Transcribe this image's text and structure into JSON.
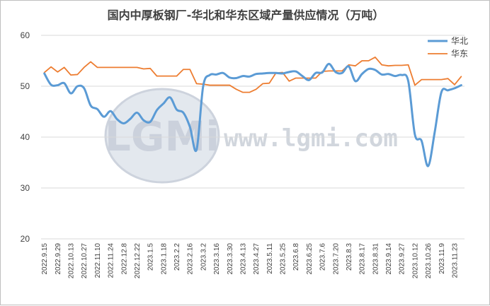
{
  "chart_data": {
    "type": "line",
    "title": "国内中厚板钢厂-华北和华东区域产量供应情况（万吨）",
    "xlabel": "",
    "ylabel": "",
    "ylim": [
      20,
      60
    ],
    "yticks": [
      20,
      30,
      40,
      50,
      60
    ],
    "grid": true,
    "legend_position": "top-right",
    "watermark": {
      "logo_text": "LGMi",
      "url_text": "www.lgmi.com"
    },
    "x": [
      "2022.9.15",
      "2022.9.22",
      "2022.9.29",
      "2022.10.6",
      "2022.10.13",
      "2022.10.20",
      "2022.10.27",
      "2022.11.3",
      "2022.11.10",
      "2022.11.17",
      "2022.11.24",
      "2022.12.1",
      "2022.12.8",
      "2022.12.15",
      "2022.12.22",
      "2022.12.29",
      "2023.1.5",
      "2023.1.12",
      "2023.1.18",
      "2023.1.25",
      "2023.2.2",
      "2023.2.9",
      "2023.2.16",
      "2023.2.23",
      "2023.3.2",
      "2023.3.9",
      "2023.3.16",
      "2023.3.23",
      "2023.3.30",
      "2023.4.6",
      "2023.4.13",
      "2023.4.20",
      "2023.4.27",
      "2023.5.4",
      "2023.5.11",
      "2023.5.18",
      "2023.5.25",
      "2023.6.1",
      "2023.6.8",
      "2023.6.15",
      "2023.6.25",
      "2023.6.29",
      "2023.7.6",
      "2023.7.13",
      "2023.7.20",
      "2023.7.27",
      "2023.8.3",
      "2023.8.10",
      "2023.8.17",
      "2023.8.24",
      "2023.8.31",
      "2023.9.7",
      "2023.9.14",
      "2023.9.21",
      "2023.9.27",
      "2023.10.5",
      "2023.10.12",
      "2023.10.19",
      "2023.10.26",
      "2023.11.2",
      "2023.11.9",
      "2023.11.16",
      "2023.11.23",
      "2023.11.30"
    ],
    "x_tick_labels": [
      "2022.9.15",
      "2022.9.29",
      "2022.10.13",
      "2022.10.27",
      "2022.11.10",
      "2022.11.24",
      "2022.12.8",
      "2022.12.22",
      "2023.1.5",
      "2023.1.18",
      "2023.2.2",
      "2023.2.16",
      "2023.3.2",
      "2023.3.16",
      "2023.3.30",
      "2023.4.13",
      "2023.4.27",
      "2023.5.11",
      "2023.5.25",
      "2023.6.8",
      "2023.6.25",
      "2023.7.6",
      "2023.7.20",
      "2023.8.3",
      "2023.8.17",
      "2023.8.31",
      "2023.9.14",
      "2023.9.27",
      "2023.10.12",
      "2023.10.26",
      "2023.11.9",
      "2023.11.23"
    ],
    "series": [
      {
        "name": "华北",
        "color": "#5b9bd5",
        "values": [
          52.5,
          50.3,
          50.2,
          50.6,
          48.6,
          50.0,
          49.6,
          46.2,
          45.5,
          44.0,
          45.1,
          43.5,
          42.7,
          43.6,
          44.8,
          43.3,
          43.0,
          45.3,
          46.6,
          47.8,
          45.4,
          44.8,
          42.0,
          37.5,
          50.0,
          52.2,
          52.3,
          52.6,
          51.7,
          51.6,
          52.0,
          51.9,
          52.4,
          52.5,
          52.6,
          52.6,
          52.5,
          52.8,
          52.9,
          52.0,
          51.2,
          52.6,
          52.7,
          54.4,
          52.8,
          52.6,
          53.9,
          51.0,
          52.4,
          53.4,
          53.2,
          52.3,
          52.4,
          52.0,
          52.2,
          51.0,
          40.5,
          39.3,
          34.3,
          41.0,
          48.8,
          49.2,
          49.6,
          50.2
        ]
      },
      {
        "name": "华东",
        "color": "#ed7d31",
        "values": [
          52.7,
          53.8,
          52.8,
          53.7,
          52.2,
          52.3,
          53.7,
          54.8,
          53.7,
          53.7,
          53.7,
          53.7,
          53.7,
          53.7,
          53.7,
          53.4,
          53.5,
          52.0,
          52.0,
          52.0,
          52.0,
          53.3,
          53.3,
          50.5,
          50.4,
          50.2,
          50.2,
          50.2,
          50.2,
          49.4,
          48.8,
          48.8,
          49.4,
          50.5,
          50.6,
          52.6,
          52.7,
          51.0,
          51.6,
          51.6,
          51.6,
          51.6,
          52.9,
          53.0,
          53.0,
          53.0,
          54.2,
          54.0,
          55.0,
          55.0,
          55.7,
          54.2,
          54.0,
          54.1,
          54.1,
          54.2,
          50.2,
          51.3,
          51.3,
          51.3,
          51.3,
          51.5,
          50.3,
          51.9
        ]
      }
    ]
  }
}
